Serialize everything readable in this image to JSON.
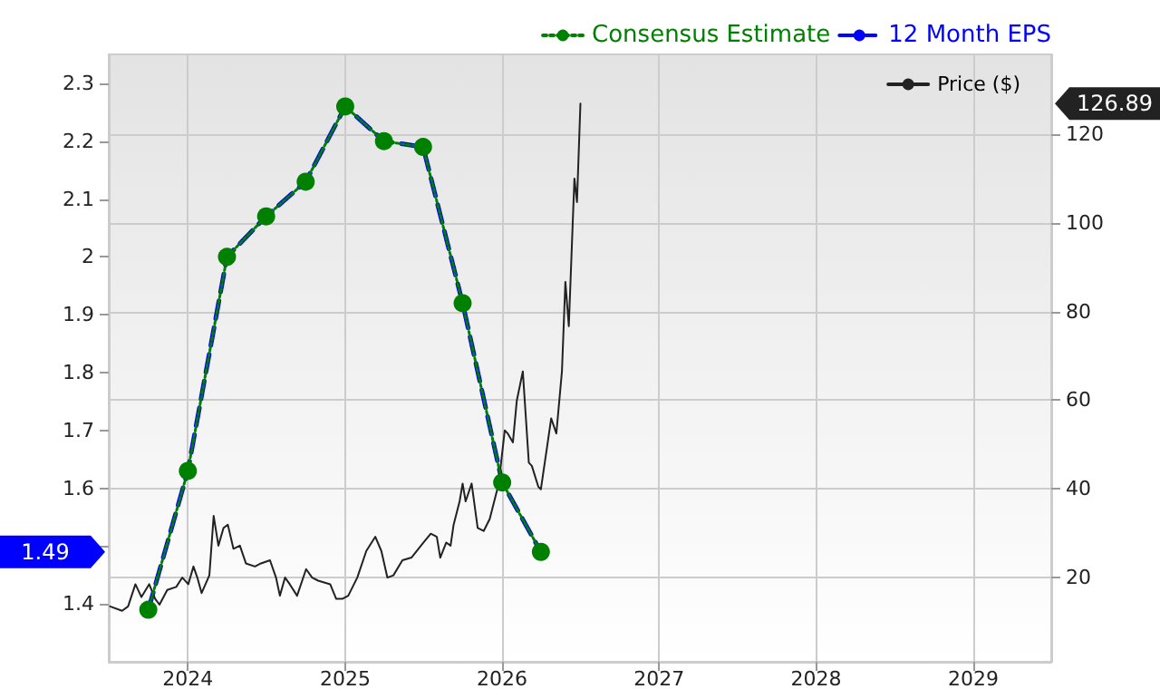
{
  "chart_data": {
    "type": "line",
    "legend": "top right",
    "grid": true,
    "xlim": [
      "2023-07-01",
      "2029-07-01"
    ],
    "xticks": [
      "2024",
      "2025",
      "2026",
      "2027",
      "2028",
      "2029"
    ],
    "ylim": [
      1.3,
      2.35
    ],
    "yticks": [
      1.4,
      {
        "value": 1.5,
        "label": null
      },
      1.6,
      1.7,
      1.8,
      1.9,
      2,
      2.1,
      2.2,
      2.3
    ],
    "y2lim": [
      1,
      138
    ],
    "y2ticks": [
      20,
      40,
      60,
      80,
      100,
      120
    ],
    "series": [
      {
        "name": "Consensus Estimate",
        "color": "#008000",
        "marker": "circle",
        "line_style": "dotted",
        "x": [
          "2023-10",
          "2024-01",
          "2024-04",
          "2024-07",
          "2024-10",
          "2025-01",
          "2025-04",
          "2025-07",
          "2025-10",
          "2026-01",
          "2026-04"
        ],
        "values": [
          1.39,
          1.63,
          2.0,
          2.07,
          2.13,
          2.26,
          2.2,
          2.19,
          1.92,
          1.61,
          1.49
        ]
      },
      {
        "name": "12 Month EPS",
        "color": "#0000ff",
        "marker": "none",
        "line_style": "dashed",
        "x": [
          "2023-10",
          "2024-01",
          "2024-04",
          "2024-07",
          "2024-10",
          "2025-01",
          "2025-04",
          "2025-07",
          "2025-10",
          "2026-01",
          "2026-04"
        ],
        "values": [
          1.39,
          1.63,
          2.0,
          2.07,
          2.13,
          2.26,
          2.2,
          2.19,
          1.92,
          1.61,
          1.49
        ]
      },
      {
        "name": "Price ($)",
        "color": "#222222",
        "marker": "none",
        "line_style": "solid",
        "axis": "y2",
        "x": [
          "2023-07-04",
          "2023-08-01",
          "2023-08-15",
          "2023-09-01",
          "2023-09-15",
          "2023-10-03",
          "2023-10-17",
          "2023-10-27",
          "2023-11-14",
          "2023-12-05",
          "2023-12-19",
          "2024-01-02",
          "2024-01-14",
          "2024-01-23",
          "2024-02-02",
          "2024-02-20",
          "2024-03-01",
          "2024-03-12",
          "2024-03-24",
          "2024-04-03",
          "2024-04-16",
          "2024-05-01",
          "2024-05-15",
          "2024-06-05",
          "2024-06-19",
          "2024-07-10",
          "2024-07-24",
          "2024-08-02",
          "2024-08-14",
          "2024-08-25",
          "2024-09-11",
          "2024-10-02",
          "2024-10-16",
          "2024-10-30",
          "2024-11-27",
          "2024-12-11",
          "2024-12-25",
          "2025-01-08",
          "2025-01-29",
          "2025-02-19",
          "2025-03-12",
          "2025-03-26",
          "2025-04-09",
          "2025-04-23",
          "2025-05-14",
          "2025-06-04",
          "2025-07-02",
          "2025-07-19",
          "2025-08-02",
          "2025-08-10",
          "2025-08-24",
          "2025-09-03",
          "2025-09-10",
          "2025-09-24",
          "2025-10-01",
          "2025-10-08",
          "2025-10-22",
          "2025-11-05",
          "2025-11-19",
          "2025-12-03",
          "2025-12-24",
          "2026-01-07",
          "2026-01-14",
          "2026-01-26",
          "2026-02-04",
          "2026-02-18",
          "2026-03-04",
          "2026-03-11",
          "2026-03-26",
          "2026-04-01",
          "2026-04-15",
          "2026-04-25",
          "2026-05-07",
          "2026-05-20",
          "2026-05-28",
          "2026-06-05",
          "2026-06-18",
          "2026-06-24",
          "2026-07-02"
        ],
        "values": [
          13.5,
          12.5,
          13.5,
          18.5,
          15.6,
          18.5,
          15.2,
          13.9,
          17.2,
          17.9,
          20,
          18.5,
          22.5,
          20,
          16.5,
          20.5,
          33.9,
          27.2,
          31.2,
          31.9,
          26.5,
          27.2,
          23.2,
          22.5,
          23.2,
          23.9,
          20,
          15.9,
          20,
          18.5,
          15.9,
          21.9,
          20,
          19.3,
          18.5,
          15.2,
          15.2,
          15.9,
          20,
          26,
          29.2,
          26,
          20,
          20.5,
          23.9,
          24.5,
          27.9,
          29.9,
          29.2,
          24.5,
          27.9,
          27.2,
          31.9,
          37.2,
          41.2,
          37.2,
          41.2,
          31.2,
          30.5,
          33.2,
          41.2,
          53.2,
          52.5,
          50.5,
          59.9,
          66.5,
          45.9,
          45.2,
          40.5,
          39.9,
          49.2,
          55.9,
          52.5,
          66.5,
          86.7,
          76.7,
          110,
          104.7,
          126.89
        ]
      }
    ],
    "annotations": [
      "1.49",
      "126.89"
    ]
  }
}
